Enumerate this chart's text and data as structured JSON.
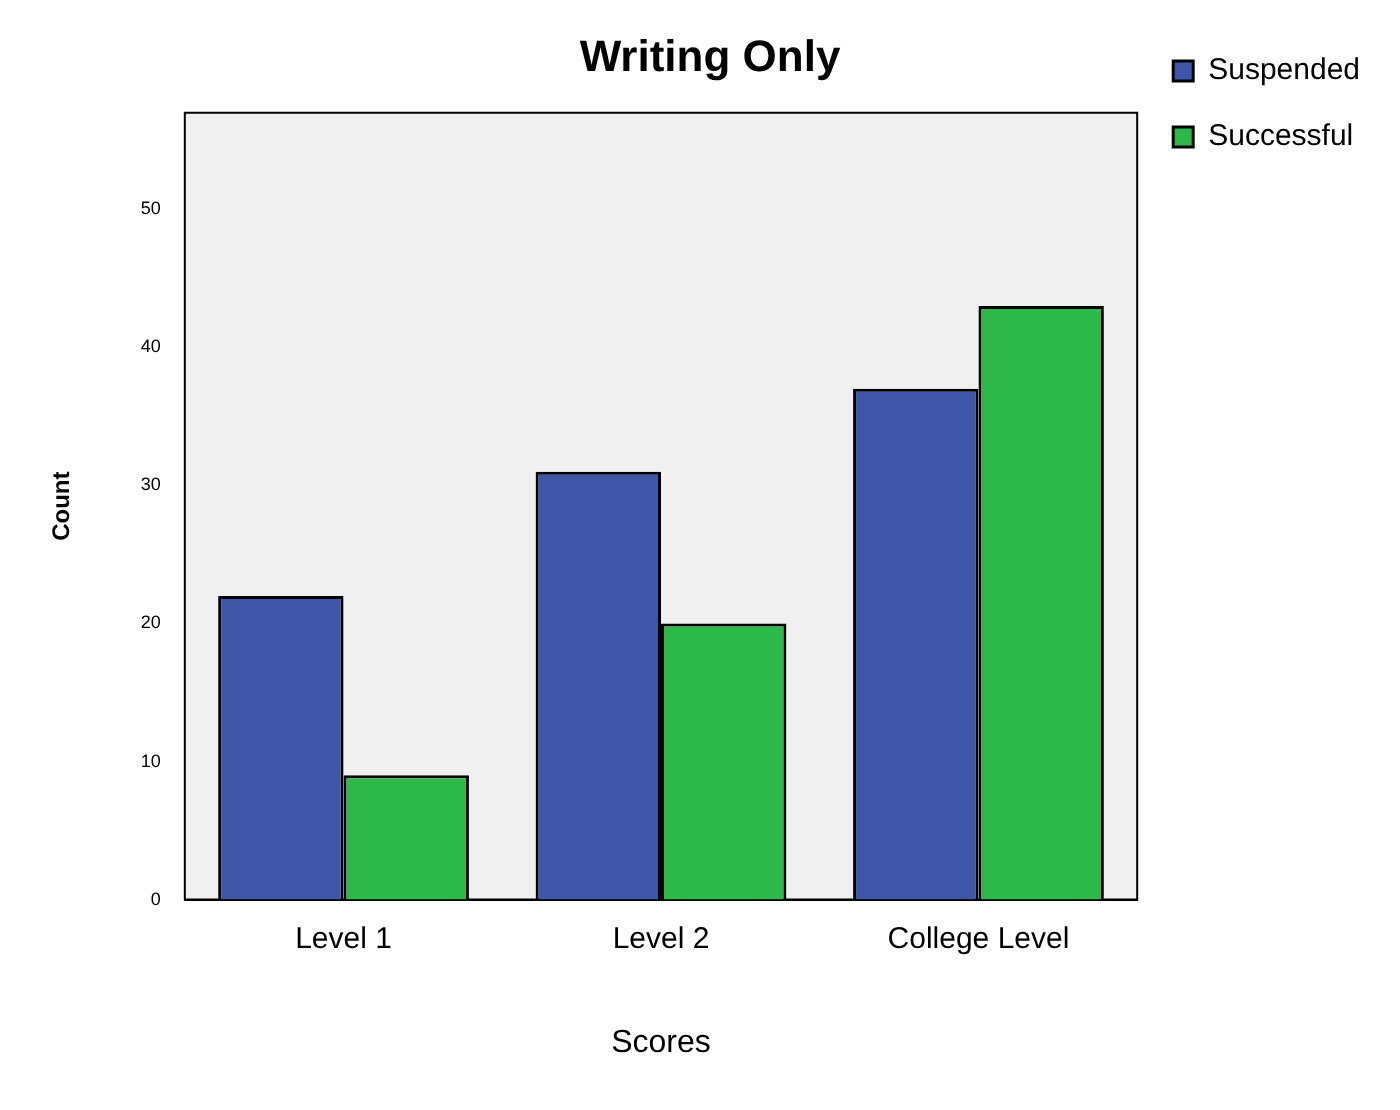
{
  "chart_data": {
    "type": "bar",
    "title": "Writing Only",
    "xlabel": "Scores",
    "ylabel": "Count",
    "categories": [
      "Level 1",
      "Level 2",
      "College Level"
    ],
    "series": [
      {
        "name": "Suspended",
        "color": "#3f56a8",
        "values": [
          22,
          31,
          37
        ]
      },
      {
        "name": "Successful",
        "color": "#2db84a",
        "values": [
          9,
          20,
          43
        ]
      }
    ],
    "ylim": [
      0,
      57
    ],
    "yticks": [
      0,
      10,
      20,
      30,
      40,
      50
    ],
    "grid": false,
    "legend": "right"
  }
}
